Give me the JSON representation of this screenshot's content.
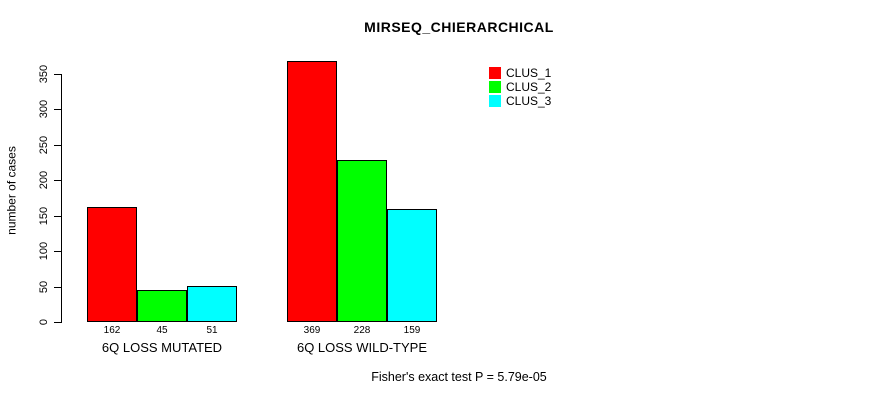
{
  "title": "MIRSEQ_CHIERARCHICAL",
  "footer": "Fisher's exact test P = 5.79e-05",
  "chart_data": {
    "type": "bar",
    "title": "MIRSEQ_CHIERARCHICAL",
    "ylabel": "number of cases",
    "xlabel": "",
    "categories": [
      "6Q LOSS MUTATED",
      "6Q LOSS WILD-TYPE"
    ],
    "series": [
      {
        "name": "CLUS_1",
        "color": "#ff0000",
        "values": [
          162,
          369
        ]
      },
      {
        "name": "CLUS_2",
        "color": "#00ff00",
        "values": [
          45,
          228
        ]
      },
      {
        "name": "CLUS_3",
        "color": "#00ffff",
        "values": [
          51,
          159
        ]
      }
    ],
    "yticks": [
      0,
      50,
      100,
      150,
      200,
      250,
      300,
      350
    ],
    "ylim": [
      0,
      369
    ],
    "bar_value_labels_shown": true,
    "grid": false,
    "legend_position": "top-right",
    "annotation": "Fisher's exact test P = 5.79e-05"
  }
}
